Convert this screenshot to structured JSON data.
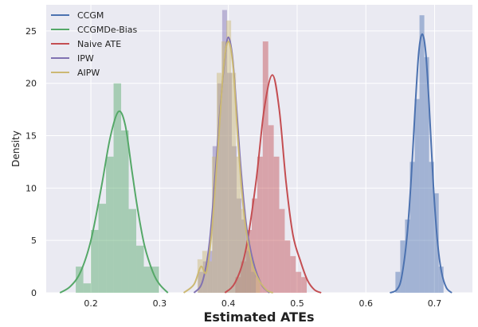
{
  "chart_data": {
    "type": "histogram-kde",
    "xlabel": "Estimated ATEs",
    "ylabel": "Density",
    "xlim": [
      0.135,
      0.755
    ],
    "ylim": [
      0,
      27.5
    ],
    "x_ticks": [
      0.2,
      0.3,
      0.4,
      0.5,
      0.6,
      0.7
    ],
    "x_tick_labels": [
      "0.2",
      "0.3",
      "0.4",
      "0.5",
      "0.6",
      "0.7"
    ],
    "y_ticks": [
      0,
      5,
      10,
      15,
      20,
      25
    ],
    "y_tick_labels": [
      "0",
      "5",
      "10",
      "15",
      "20",
      "25"
    ],
    "grid": true,
    "legend_position": "top-left",
    "series": [
      {
        "name": "CCGM",
        "color": "#4c72b0",
        "bins": [
          [
            0.643,
            0.65,
            2.0
          ],
          [
            0.65,
            0.657,
            5.0
          ],
          [
            0.657,
            0.664,
            7.0
          ],
          [
            0.664,
            0.671,
            12.5
          ],
          [
            0.671,
            0.678,
            18.5
          ],
          [
            0.678,
            0.685,
            26.5
          ],
          [
            0.685,
            0.692,
            22.5
          ],
          [
            0.692,
            0.699,
            12.5
          ],
          [
            0.699,
            0.706,
            9.5
          ],
          [
            0.706,
            0.713,
            2.5
          ]
        ],
        "kde": [
          [
            0.635,
            0.0
          ],
          [
            0.645,
            0.3
          ],
          [
            0.652,
            1.5
          ],
          [
            0.66,
            5.5
          ],
          [
            0.666,
            11.0
          ],
          [
            0.672,
            18.0
          ],
          [
            0.677,
            23.0
          ],
          [
            0.682,
            24.7
          ],
          [
            0.687,
            23.0
          ],
          [
            0.692,
            18.0
          ],
          [
            0.698,
            10.5
          ],
          [
            0.704,
            5.0
          ],
          [
            0.71,
            2.0
          ],
          [
            0.717,
            0.5
          ],
          [
            0.725,
            0.0
          ]
        ]
      },
      {
        "name": "CCGMDe-Bias",
        "color": "#55a868",
        "bins": [
          [
            0.178,
            0.189,
            2.5
          ],
          [
            0.189,
            0.2,
            0.9
          ],
          [
            0.2,
            0.211,
            6.0
          ],
          [
            0.211,
            0.222,
            8.5
          ],
          [
            0.222,
            0.233,
            13.0
          ],
          [
            0.233,
            0.244,
            20.0
          ],
          [
            0.244,
            0.255,
            15.5
          ],
          [
            0.255,
            0.266,
            8.0
          ],
          [
            0.266,
            0.277,
            4.5
          ],
          [
            0.277,
            0.288,
            2.5
          ],
          [
            0.288,
            0.299,
            2.5
          ]
        ],
        "kde": [
          [
            0.155,
            0.0
          ],
          [
            0.17,
            0.6
          ],
          [
            0.185,
            2.0
          ],
          [
            0.2,
            5.0
          ],
          [
            0.215,
            10.0
          ],
          [
            0.228,
            14.8
          ],
          [
            0.24,
            17.3
          ],
          [
            0.25,
            16.0
          ],
          [
            0.26,
            11.5
          ],
          [
            0.268,
            8.0
          ],
          [
            0.278,
            4.5
          ],
          [
            0.29,
            2.0
          ],
          [
            0.3,
            0.8
          ],
          [
            0.312,
            0.0
          ]
        ]
      },
      {
        "name": "Naive ATE",
        "color": "#c44e52",
        "bins": [
          [
            0.41,
            0.418,
            1.5
          ],
          [
            0.418,
            0.426,
            3.0
          ],
          [
            0.426,
            0.434,
            6.0
          ],
          [
            0.434,
            0.442,
            9.0
          ],
          [
            0.442,
            0.45,
            13.0
          ],
          [
            0.45,
            0.458,
            24.0
          ],
          [
            0.458,
            0.466,
            16.0
          ],
          [
            0.466,
            0.474,
            13.0
          ],
          [
            0.474,
            0.482,
            8.0
          ],
          [
            0.482,
            0.49,
            5.0
          ],
          [
            0.49,
            0.498,
            3.5
          ],
          [
            0.498,
            0.506,
            2.0
          ],
          [
            0.506,
            0.514,
            1.5
          ]
        ],
        "kde": [
          [
            0.395,
            0.0
          ],
          [
            0.41,
            1.0
          ],
          [
            0.425,
            4.0
          ],
          [
            0.44,
            10.5
          ],
          [
            0.452,
            17.5
          ],
          [
            0.464,
            20.8
          ],
          [
            0.474,
            17.5
          ],
          [
            0.484,
            10.5
          ],
          [
            0.494,
            5.5
          ],
          [
            0.505,
            3.0
          ],
          [
            0.515,
            1.2
          ],
          [
            0.525,
            0.3
          ],
          [
            0.535,
            0.0
          ]
        ]
      },
      {
        "name": "IPW",
        "color": "#8172b2",
        "bins": [
          [
            0.356,
            0.363,
            2.0
          ],
          [
            0.363,
            0.37,
            3.0
          ],
          [
            0.37,
            0.377,
            4.0
          ],
          [
            0.377,
            0.384,
            14.0
          ],
          [
            0.384,
            0.391,
            20.0
          ],
          [
            0.391,
            0.398,
            27.0
          ],
          [
            0.398,
            0.405,
            21.0
          ],
          [
            0.405,
            0.412,
            14.0
          ],
          [
            0.412,
            0.419,
            9.0
          ],
          [
            0.419,
            0.426,
            7.0
          ],
          [
            0.426,
            0.433,
            4.0
          ],
          [
            0.433,
            0.44,
            2.0
          ]
        ],
        "kde": [
          [
            0.35,
            0.0
          ],
          [
            0.362,
            1.0
          ],
          [
            0.372,
            4.5
          ],
          [
            0.38,
            10.5
          ],
          [
            0.388,
            17.5
          ],
          [
            0.395,
            22.5
          ],
          [
            0.4,
            24.4
          ],
          [
            0.406,
            22.5
          ],
          [
            0.412,
            17.5
          ],
          [
            0.418,
            12.0
          ],
          [
            0.426,
            6.5
          ],
          [
            0.436,
            3.0
          ],
          [
            0.448,
            0.8
          ],
          [
            0.46,
            0.0
          ]
        ]
      },
      {
        "name": "AIPW",
        "color": "#ccb974",
        "bins": [
          [
            0.355,
            0.362,
            3.2
          ],
          [
            0.362,
            0.369,
            4.0
          ],
          [
            0.369,
            0.376,
            3.0
          ],
          [
            0.376,
            0.383,
            13.0
          ],
          [
            0.383,
            0.39,
            21.0
          ],
          [
            0.39,
            0.397,
            24.0
          ],
          [
            0.397,
            0.404,
            26.0
          ],
          [
            0.404,
            0.411,
            21.0
          ],
          [
            0.411,
            0.418,
            13.0
          ],
          [
            0.418,
            0.425,
            8.0
          ],
          [
            0.425,
            0.432,
            5.0
          ],
          [
            0.432,
            0.439,
            3.0
          ],
          [
            0.439,
            0.446,
            1.5
          ]
        ],
        "kde": [
          [
            0.335,
            0.0
          ],
          [
            0.35,
            0.8
          ],
          [
            0.36,
            2.5
          ],
          [
            0.368,
            2.0
          ],
          [
            0.376,
            6.0
          ],
          [
            0.385,
            14.0
          ],
          [
            0.393,
            21.5
          ],
          [
            0.4,
            24.0
          ],
          [
            0.407,
            21.5
          ],
          [
            0.414,
            14.5
          ],
          [
            0.422,
            8.0
          ],
          [
            0.432,
            3.5
          ],
          [
            0.442,
            1.5
          ],
          [
            0.455,
            0.3
          ],
          [
            0.465,
            0.0
          ]
        ]
      }
    ]
  }
}
